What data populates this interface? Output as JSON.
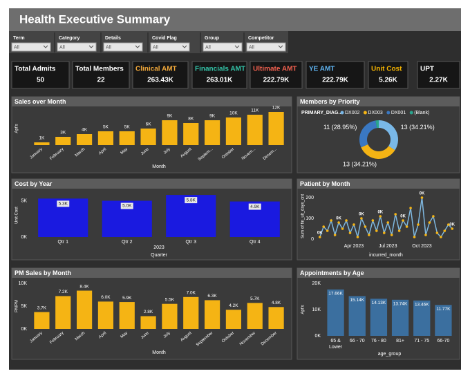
{
  "header": {
    "title": "Health Executive Summary"
  },
  "filters": [
    {
      "label": "Term",
      "value": "All"
    },
    {
      "label": "Category",
      "value": "All"
    },
    {
      "label": "Details",
      "value": "All"
    },
    {
      "label": "Covid Flag",
      "value": "All"
    },
    {
      "label": "Group",
      "value": "All"
    },
    {
      "label": "Competitor",
      "value": "All"
    }
  ],
  "kpis": [
    {
      "label": "Total Admits",
      "value": "50",
      "color": "#ffffff"
    },
    {
      "label": "Total Members",
      "value": "22",
      "color": "#ffffff"
    },
    {
      "label": "Clinical AMT",
      "value": "263.43K",
      "color": "#f2a93b"
    },
    {
      "label": "Financials AMT",
      "value": "263.01K",
      "color": "#33c3a8"
    },
    {
      "label": "Ultimate AMT",
      "value": "222.79K",
      "color": "#f0604f"
    },
    {
      "label": "YE AMT",
      "value": "222.79K",
      "color": "#5fb3f0"
    },
    {
      "label": "Unit Cost",
      "value": "5.26K",
      "color": "#f5b400"
    },
    {
      "label": "UPT",
      "value": "2.27K",
      "color": "#ffffff"
    }
  ],
  "chart_data": [
    {
      "type": "bar",
      "title": "Sales over Month",
      "x_label": "Month",
      "y_label": "Apt's",
      "color": "#f5b414",
      "categories": [
        "January",
        "February",
        "March",
        "April",
        "May",
        "June",
        "July",
        "August",
        "Septem...",
        "October",
        "Novem...",
        "Decem..."
      ],
      "values": [
        1000,
        3000,
        4000,
        5000,
        5000,
        6000,
        9000,
        8000,
        9000,
        10000,
        11000,
        12000
      ],
      "value_labels": [
        "1K",
        "3K",
        "4K",
        "5K",
        "5K",
        "6K",
        "9K",
        "8K",
        "9K",
        "10K",
        "11K",
        "12K"
      ]
    },
    {
      "type": "pie",
      "title": "Members by Priority",
      "legend_title": "PRIMARY_DIAG...",
      "categories": [
        "DX002",
        "DX003",
        "DX001",
        "(Blank)"
      ],
      "colors": [
        "#79b8e8",
        "#f5b414",
        "#3a78c2",
        "#2aa58e"
      ],
      "values": [
        13,
        13,
        11,
        1
      ],
      "value_labels": [
        "13 (34.21%)",
        "13 (34.21%)",
        "11 (28.95%)",
        null
      ]
    },
    {
      "type": "bar",
      "title": "Cost by Year",
      "x_label": "Quarter",
      "x_group_label": "2023",
      "y_label": "Unit Cost",
      "color": "#1a1ae0",
      "categories": [
        "Qtr 1",
        "Qtr 2",
        "Qtr 3",
        "Qtr 4"
      ],
      "values": [
        5300,
        5000,
        5800,
        4900
      ],
      "value_labels": [
        "5.3K",
        "5.0K",
        "5.8K",
        "4.9K"
      ],
      "ylim": [
        0,
        6000
      ],
      "yticks": [
        {
          "value": 0,
          "label": "0K"
        },
        {
          "value": 5000,
          "label": "5K"
        }
      ]
    },
    {
      "type": "line",
      "title": "Patient by Month",
      "x_label": "incurred_month",
      "y_label": "Sum of fin_ult_days_cnt",
      "color": "#7fb8e0",
      "marker_color": "#f5b414",
      "categories": [
        null,
        null,
        null,
        null,
        null,
        null,
        null,
        null,
        null,
        "Apr 2023",
        null,
        null,
        null,
        null,
        null,
        null,
        null,
        null,
        "Jul 2023",
        null,
        null,
        null,
        null,
        null,
        null,
        null,
        null,
        "Oct 2023",
        null,
        null,
        null,
        null,
        null,
        null,
        null,
        null
      ],
      "values": [
        10,
        60,
        40,
        90,
        20,
        80,
        50,
        90,
        30,
        70,
        10,
        100,
        60,
        20,
        90,
        40,
        110,
        30,
        80,
        20,
        120,
        40,
        90,
        60,
        150,
        10,
        70,
        200,
        20,
        80,
        110,
        30,
        10,
        40,
        70,
        50
      ],
      "value_labels": [
        "0K",
        null,
        null,
        null,
        null,
        "0K",
        null,
        null,
        null,
        null,
        null,
        "0K",
        null,
        null,
        null,
        null,
        "0K",
        null,
        null,
        null,
        null,
        null,
        "0K",
        null,
        null,
        null,
        null,
        "0K",
        null,
        null,
        null,
        null,
        null,
        null,
        null,
        "0K"
      ],
      "ylim": [
        0,
        220
      ],
      "yticks": [
        0,
        100,
        200
      ]
    },
    {
      "type": "bar",
      "title": "PM Sales by Month",
      "x_label": "Month",
      "y_label": "PMPM",
      "color": "#f5b414",
      "categories": [
        "January",
        "February",
        "March",
        "April",
        "May",
        "June",
        "July",
        "August",
        "September",
        "October",
        "November",
        "December"
      ],
      "values": [
        3700,
        7200,
        8400,
        6000,
        5900,
        2800,
        5500,
        7000,
        6300,
        4200,
        5700,
        4800
      ],
      "value_labels": [
        "3.7K",
        "7.2K",
        "8.4K",
        "6.0K",
        "5.9K",
        "2.8K",
        "5.5K",
        "7.0K",
        "6.3K",
        "4.2K",
        "5.7K",
        "4.8K"
      ],
      "ylim": [
        0,
        10000
      ],
      "yticks": [
        {
          "value": 0,
          "label": "0K"
        },
        {
          "value": 5000,
          "label": "5K"
        },
        {
          "value": 10000,
          "label": "10K"
        }
      ]
    },
    {
      "type": "bar",
      "title": "Appointments by Age",
      "x_label": "age_group",
      "y_label": "Apt's",
      "color": "#3b6f9f",
      "categories": [
        "65 & Lower",
        "66 - 70",
        "76 - 80",
        "81+",
        "71 - 75",
        "66-70"
      ],
      "values": [
        17660,
        15140,
        14130,
        13740,
        13460,
        11770
      ],
      "value_labels": [
        "17.66K",
        "15.14K",
        "14.13K",
        "13.74K",
        "13.46K",
        "11.77K"
      ],
      "ylim": [
        0,
        20000
      ],
      "yticks": [
        {
          "value": 0,
          "label": "0K"
        },
        {
          "value": 10000,
          "label": "10K"
        },
        {
          "value": 20000,
          "label": "20K"
        }
      ]
    }
  ]
}
